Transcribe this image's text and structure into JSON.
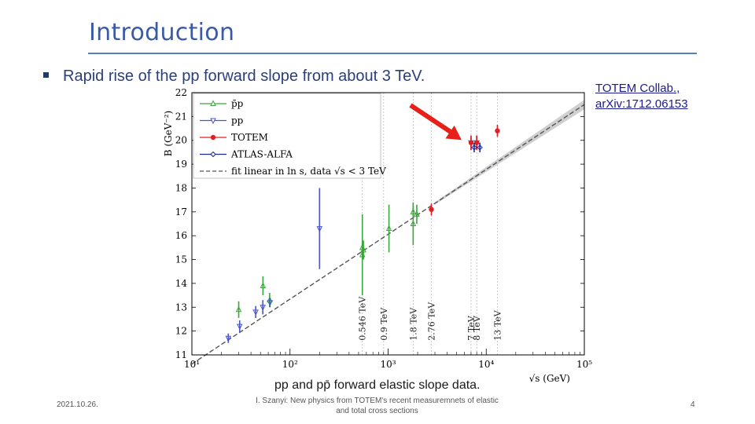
{
  "slide": {
    "title": "Introduction",
    "bullet": "Rapid rise of the pp forward slope from about 3 TeV.",
    "reference": "TOTEM Collab., arXiv:1712.06153",
    "caption": "pp and pp̄ forward elastic slope data."
  },
  "footer": {
    "date": "2021.10.26.",
    "center": "I. Szanyi: New physics from TOTEM's recent measuremnets of elastic and total cross sections",
    "page": "4"
  },
  "colors": {
    "title": "#3b5aa5",
    "ppbar": "#3aa63a",
    "pp": "#4a56c8",
    "totem": "#e02020",
    "atlas": "#1a2a9a",
    "fit": "#555555",
    "arrow": "#e8201a"
  },
  "chart_data": {
    "type": "scatter",
    "title": "",
    "xlabel": "√s (GeV)",
    "ylabel": "B (GeV⁻²)",
    "xscale": "log",
    "xlim": [
      10,
      100000
    ],
    "ylim": [
      11,
      22
    ],
    "xticks": [
      "10¹",
      "10²",
      "10³",
      "10⁴",
      "10⁵"
    ],
    "yticks": [
      11,
      12,
      13,
      14,
      15,
      16,
      17,
      18,
      19,
      20,
      21,
      22
    ],
    "legend": {
      "placement": "top-left",
      "entries": [
        "p̄p",
        "pp",
        "TOTEM",
        "ATLAS-ALFA",
        "fit linear in ln s, data √s < 3 TeV"
      ]
    },
    "energy_labels": [
      {
        "text": "0.546 TeV",
        "x": 546
      },
      {
        "text": "0.9 TeV",
        "x": 900
      },
      {
        "text": "1.8 TeV",
        "x": 1800
      },
      {
        "text": "2.76 TeV",
        "x": 2760
      },
      {
        "text": "7 TeV",
        "x": 7000
      },
      {
        "text": "8 TeV",
        "x": 8000
      },
      {
        "text": "13 TeV",
        "x": 13000
      }
    ],
    "fit_line": {
      "x": [
        10,
        100000
      ],
      "y": [
        10.62,
        21.5
      ]
    },
    "series": [
      {
        "name": "p̄p",
        "color": "#3aa63a",
        "points": [
          {
            "x": 30,
            "y": 12.9,
            "err": 0.35
          },
          {
            "x": 53,
            "y": 13.9,
            "err": 0.4
          },
          {
            "x": 62,
            "y": 13.3,
            "err": 0.3
          },
          {
            "x": 546,
            "y": 15.5,
            "err": 0.3
          },
          {
            "x": 546,
            "y": 15.2,
            "err": 1.7
          },
          {
            "x": 560,
            "y": 15.4,
            "err": 0.4
          },
          {
            "x": 1020,
            "y": 16.3,
            "err": 1.0
          },
          {
            "x": 1800,
            "y": 17.0,
            "err": 0.25
          },
          {
            "x": 1800,
            "y": 16.5,
            "err": 0.9
          },
          {
            "x": 1960,
            "y": 16.9,
            "err": 0.4
          }
        ]
      },
      {
        "name": "pp",
        "color": "#4a56c8",
        "points": [
          {
            "x": 23.5,
            "y": 11.7,
            "err": 0.2
          },
          {
            "x": 30.7,
            "y": 12.2,
            "err": 0.25
          },
          {
            "x": 44.7,
            "y": 12.8,
            "err": 0.25
          },
          {
            "x": 52.8,
            "y": 13.0,
            "err": 0.3
          },
          {
            "x": 62.5,
            "y": 13.2,
            "err": 0.2
          },
          {
            "x": 200,
            "y": 16.3,
            "err": 1.7
          },
          {
            "x": 7000,
            "y": 19.9,
            "err": 0.3
          },
          {
            "x": 8000,
            "y": 19.9,
            "err": 0.3
          }
        ]
      },
      {
        "name": "TOTEM",
        "color": "#e02020",
        "points": [
          {
            "x": 2760,
            "y": 17.1,
            "err": 0.25
          },
          {
            "x": 7000,
            "y": 19.9,
            "err": 0.3
          },
          {
            "x": 8000,
            "y": 19.9,
            "err": 0.3
          },
          {
            "x": 13000,
            "y": 20.4,
            "err": 0.25
          }
        ]
      },
      {
        "name": "ATLAS-ALFA",
        "color": "#1a2a9a",
        "points": [
          {
            "x": 7000,
            "y": 19.7,
            "err": 0.2
          },
          {
            "x": 8000,
            "y": 19.7,
            "err": 0.2
          }
        ]
      }
    ]
  }
}
